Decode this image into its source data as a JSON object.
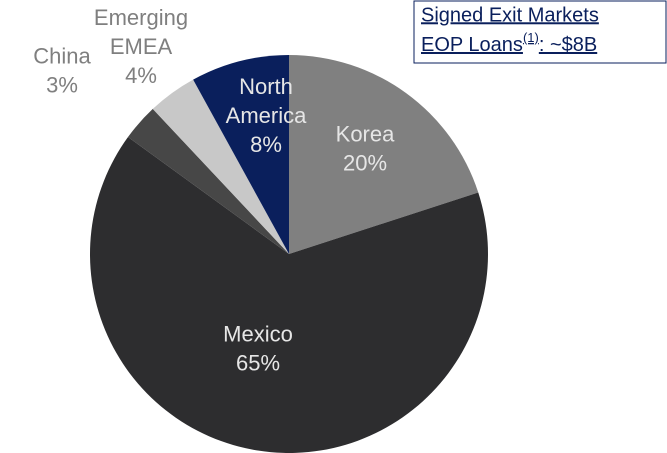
{
  "chart_data": {
    "type": "pie",
    "categories": [
      "Korea",
      "Mexico",
      "China",
      "Emerging EMEA",
      "North America"
    ],
    "values": [
      20,
      65,
      3,
      4,
      8
    ],
    "value_labels": [
      "20%",
      "65%",
      "3%",
      "4%",
      "8%"
    ],
    "colors": [
      "#808080",
      "#2d2d2f",
      "#474747",
      "#c8c8c8",
      "#0a1f5c"
    ],
    "annotation": {
      "title": "Signed Exit Markets",
      "text": "EOP Loans",
      "superscript": "(1)",
      "suffix": ":  ~$8B"
    }
  }
}
